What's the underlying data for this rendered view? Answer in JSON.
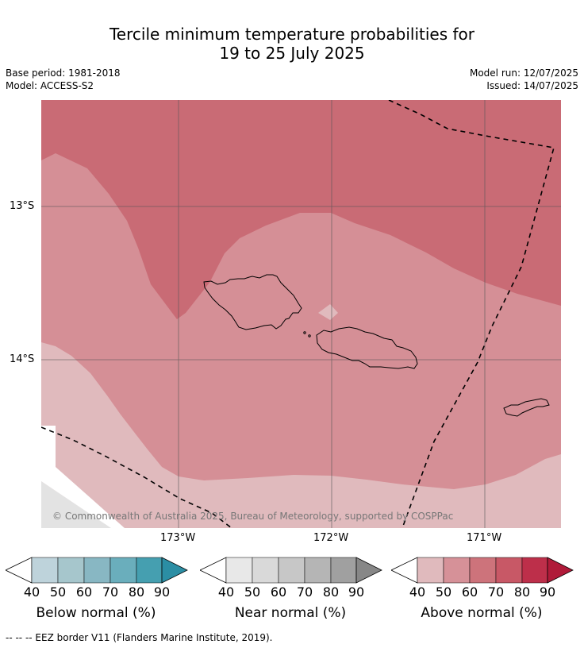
{
  "title": {
    "line1": "Tercile minimum temperature probabilities for",
    "line2": "19 to 25 July 2025"
  },
  "meta": {
    "base_period": "Base period: 1981-2018",
    "model": "Model: ACCESS-S2",
    "model_run": "Model run: 12/07/2025",
    "issued": "Issued: 14/07/2025"
  },
  "map": {
    "lat_ticks": [
      "13°S",
      "14°S"
    ],
    "lon_ticks": [
      "173°W",
      "172°W",
      "171°W"
    ],
    "copyright": "© Commonwealth of Australia 2025, Bureau of Meteorology, supported by COSPPac",
    "probability_classes": {
      "above_40_50": "#e0babd",
      "above_50_60": "#d58f96",
      "above_60_70": "#c96b75",
      "near_40_50": "#e3e3e3"
    }
  },
  "colorbars": [
    {
      "label": "Below normal (%)",
      "ticks": [
        "40",
        "50",
        "60",
        "70",
        "80",
        "90"
      ],
      "colors": [
        "#bed3db",
        "#a6c6cc",
        "#88b7c3",
        "#6aaebc",
        "#459fb0",
        "#2b8ea4"
      ]
    },
    {
      "label": "Near normal (%)",
      "ticks": [
        "40",
        "50",
        "60",
        "70",
        "80",
        "90"
      ],
      "colors": [
        "#e8e8e8",
        "#d9d9d9",
        "#c7c7c7",
        "#b5b5b5",
        "#a0a0a0",
        "#878787"
      ]
    },
    {
      "label": "Above normal (%)",
      "ticks": [
        "40",
        "50",
        "60",
        "70",
        "80",
        "90"
      ],
      "colors": [
        "#e0babd",
        "#d69198",
        "#cd737b",
        "#c85866",
        "#bd2f4a",
        "#b01a39"
      ]
    }
  ],
  "footnote": "--  --  -- EEZ border V11 (Flanders Marine Institute, 2019)."
}
